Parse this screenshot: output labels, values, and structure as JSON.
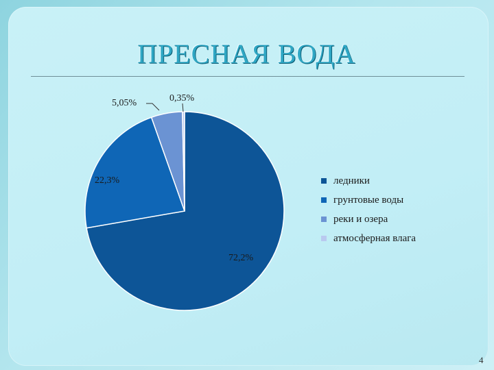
{
  "slide": {
    "title": "ПРЕСНАЯ ВОДА",
    "page_number": "4"
  },
  "chart_data": {
    "type": "pie",
    "title": "",
    "categories": [
      "ледники",
      "грунтовые воды",
      "реки и озера",
      "атмосферная влага"
    ],
    "values": [
      72.2,
      22.3,
      5.05,
      0.35
    ],
    "data_labels": [
      "72,2%",
      "22,3%",
      "5,05%",
      "0,35%"
    ],
    "colors": [
      "#0d5597",
      "#0f66b6",
      "#6b93d3",
      "#b9c9ef"
    ],
    "start_angle_deg": 0,
    "direction": "clockwise",
    "legend_position": "right"
  },
  "theme": {
    "background": "#c2eef6",
    "title_color": "#2fa7c4",
    "label_color": "#1a1a1a"
  }
}
